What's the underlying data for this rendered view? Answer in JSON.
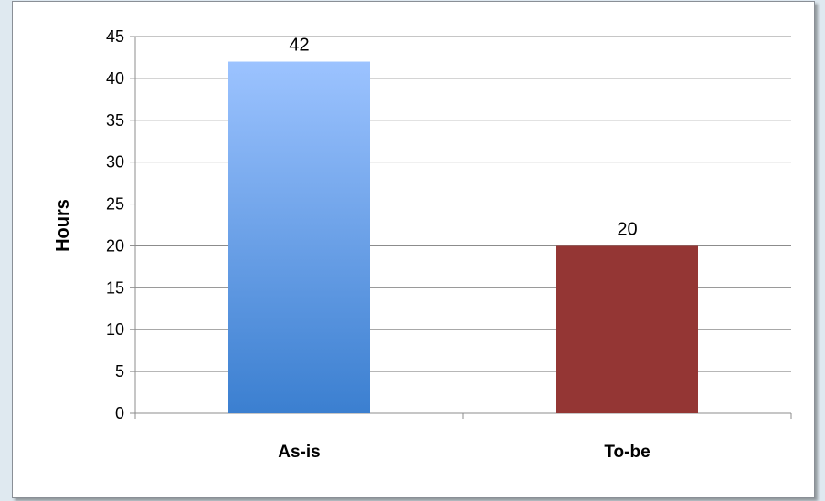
{
  "chart_data": {
    "type": "bar",
    "title": "",
    "xlabel": "",
    "ylabel": "Hours",
    "ylim": [
      0,
      45
    ],
    "ytick_step": 5,
    "grid": true,
    "categories": [
      "As-is",
      "To-be"
    ],
    "values": [
      42,
      20
    ],
    "data_labels": [
      "42",
      "20"
    ],
    "colors": {
      "as_is_gradient_top": "#9cc3ff",
      "as_is_gradient_bottom": "#3b7fd0",
      "to_be": "#943634",
      "grid": "#8c8c8c",
      "axis": "#8c8c8c"
    }
  }
}
